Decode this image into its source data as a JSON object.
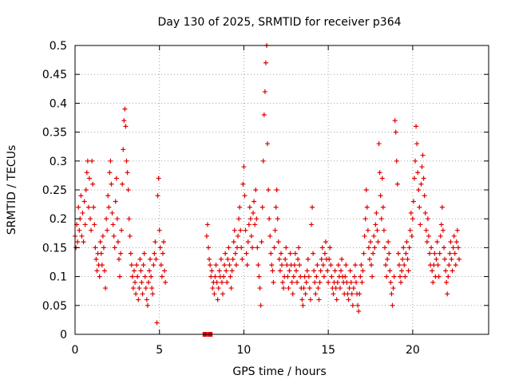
{
  "chart_data": {
    "type": "scatter",
    "title": "Day 130 of 2025, SRMTID for receiver p364",
    "xlabel": "GPS time / hours",
    "ylabel": "SRMTID / TECUs",
    "xlim": [
      0,
      24.5
    ],
    "ylim": [
      0,
      0.5
    ],
    "xticks": [
      0,
      5,
      10,
      15,
      20
    ],
    "xtick_labels": [
      "0",
      "5",
      "10",
      "15",
      "20"
    ],
    "yticks": [
      0,
      0.05,
      0.1,
      0.15,
      0.2,
      0.25,
      0.3,
      0.35,
      0.4,
      0.45,
      0.5
    ],
    "ytick_labels": [
      "0",
      "0.05",
      "0.1",
      "0.15",
      "0.2",
      "0.25",
      "0.3",
      "0.35",
      "0.4",
      "0.45",
      "0.5"
    ],
    "grid": true,
    "marker": "+",
    "color": "#e00000",
    "zero_markers": {
      "x": [
        7.7,
        8.0
      ],
      "y": 0
    },
    "points": [
      [
        0.0,
        0.17
      ],
      [
        0.05,
        0.15
      ],
      [
        0.1,
        0.19
      ],
      [
        0.15,
        0.16
      ],
      [
        0.2,
        0.22
      ],
      [
        0.25,
        0.18
      ],
      [
        0.3,
        0.2
      ],
      [
        0.35,
        0.24
      ],
      [
        0.4,
        0.17
      ],
      [
        0.45,
        0.21
      ],
      [
        0.5,
        0.16
      ],
      [
        0.55,
        0.23
      ],
      [
        0.6,
        0.19
      ],
      [
        0.65,
        0.25
      ],
      [
        0.7,
        0.28
      ],
      [
        0.75,
        0.3
      ],
      [
        0.8,
        0.22
      ],
      [
        0.85,
        0.27
      ],
      [
        0.9,
        0.2
      ],
      [
        0.95,
        0.18
      ],
      [
        1.0,
        0.3
      ],
      [
        1.05,
        0.26
      ],
      [
        1.1,
        0.22
      ],
      [
        1.15,
        0.19
      ],
      [
        1.2,
        0.15
      ],
      [
        1.25,
        0.13
      ],
      [
        1.3,
        0.11
      ],
      [
        1.35,
        0.14
      ],
      [
        1.4,
        0.12
      ],
      [
        1.45,
        0.1
      ],
      [
        1.5,
        0.16
      ],
      [
        1.55,
        0.14
      ],
      [
        1.6,
        0.12
      ],
      [
        1.65,
        0.17
      ],
      [
        1.7,
        0.15
      ],
      [
        1.75,
        0.11
      ],
      [
        1.8,
        0.08
      ],
      [
        1.85,
        0.2
      ],
      [
        1.9,
        0.18
      ],
      [
        1.95,
        0.24
      ],
      [
        2.0,
        0.22
      ],
      [
        2.05,
        0.28
      ],
      [
        2.1,
        0.3
      ],
      [
        2.15,
        0.26
      ],
      [
        2.2,
        0.21
      ],
      [
        2.25,
        0.19
      ],
      [
        2.3,
        0.17
      ],
      [
        2.35,
        0.15
      ],
      [
        2.4,
        0.23
      ],
      [
        2.45,
        0.27
      ],
      [
        2.5,
        0.2
      ],
      [
        2.55,
        0.16
      ],
      [
        2.6,
        0.13
      ],
      [
        2.65,
        0.1
      ],
      [
        2.7,
        0.14
      ],
      [
        2.75,
        0.18
      ],
      [
        2.8,
        0.26
      ],
      [
        2.85,
        0.32
      ],
      [
        2.9,
        0.37
      ],
      [
        2.95,
        0.39
      ],
      [
        3.0,
        0.36
      ],
      [
        3.05,
        0.3
      ],
      [
        3.1,
        0.28
      ],
      [
        3.15,
        0.25
      ],
      [
        3.2,
        0.2
      ],
      [
        3.25,
        0.17
      ],
      [
        3.3,
        0.14
      ],
      [
        3.35,
        0.12
      ],
      [
        3.4,
        0.1
      ],
      [
        3.45,
        0.08
      ],
      [
        3.5,
        0.11
      ],
      [
        3.55,
        0.09
      ],
      [
        3.6,
        0.07
      ],
      [
        3.65,
        0.12
      ],
      [
        3.7,
        0.1
      ],
      [
        3.75,
        0.06
      ],
      [
        3.8,
        0.08
      ],
      [
        3.85,
        0.13
      ],
      [
        3.9,
        0.11
      ],
      [
        3.95,
        0.09
      ],
      [
        4.0,
        0.07
      ],
      [
        4.05,
        0.12
      ],
      [
        4.1,
        0.14
      ],
      [
        4.15,
        0.1
      ],
      [
        4.2,
        0.08
      ],
      [
        4.25,
        0.06
      ],
      [
        4.3,
        0.05
      ],
      [
        4.35,
        0.09
      ],
      [
        4.4,
        0.11
      ],
      [
        4.45,
        0.13
      ],
      [
        4.5,
        0.1
      ],
      [
        4.55,
        0.08
      ],
      [
        4.6,
        0.07
      ],
      [
        4.65,
        0.12
      ],
      [
        4.7,
        0.14
      ],
      [
        4.75,
        0.16
      ],
      [
        4.8,
        0.13
      ],
      [
        4.85,
        0.02
      ],
      [
        4.9,
        0.24
      ],
      [
        4.95,
        0.27
      ],
      [
        5.0,
        0.18
      ],
      [
        5.05,
        0.15
      ],
      [
        5.1,
        0.12
      ],
      [
        5.15,
        0.1
      ],
      [
        5.2,
        0.14
      ],
      [
        5.25,
        0.16
      ],
      [
        5.3,
        0.11
      ],
      [
        5.35,
        0.09
      ],
      [
        7.8,
        0.17
      ],
      [
        7.85,
        0.19
      ],
      [
        7.9,
        0.15
      ],
      [
        7.95,
        0.13
      ],
      [
        8.0,
        0.12
      ],
      [
        8.05,
        0.1
      ],
      [
        8.1,
        0.11
      ],
      [
        8.15,
        0.08
      ],
      [
        8.2,
        0.09
      ],
      [
        8.25,
        0.07
      ],
      [
        8.3,
        0.1
      ],
      [
        8.35,
        0.12
      ],
      [
        8.4,
        0.09
      ],
      [
        8.45,
        0.06
      ],
      [
        8.5,
        0.08
      ],
      [
        8.55,
        0.11
      ],
      [
        8.6,
        0.1
      ],
      [
        8.65,
        0.13
      ],
      [
        8.7,
        0.09
      ],
      [
        8.75,
        0.07
      ],
      [
        8.8,
        0.1
      ],
      [
        8.85,
        0.12
      ],
      [
        8.9,
        0.14
      ],
      [
        8.95,
        0.11
      ],
      [
        9.0,
        0.09
      ],
      [
        9.05,
        0.13
      ],
      [
        9.1,
        0.15
      ],
      [
        9.15,
        0.12
      ],
      [
        9.2,
        0.1
      ],
      [
        9.25,
        0.08
      ],
      [
        9.3,
        0.11
      ],
      [
        9.35,
        0.13
      ],
      [
        9.4,
        0.16
      ],
      [
        9.45,
        0.18
      ],
      [
        9.5,
        0.14
      ],
      [
        9.55,
        0.12
      ],
      [
        9.6,
        0.15
      ],
      [
        9.65,
        0.17
      ],
      [
        9.7,
        0.2
      ],
      [
        9.75,
        0.22
      ],
      [
        9.8,
        0.18
      ],
      [
        9.85,
        0.15
      ],
      [
        9.9,
        0.13
      ],
      [
        9.95,
        0.26
      ],
      [
        10.0,
        0.29
      ],
      [
        10.05,
        0.24
      ],
      [
        10.1,
        0.18
      ],
      [
        10.15,
        0.14
      ],
      [
        10.2,
        0.12
      ],
      [
        10.25,
        0.16
      ],
      [
        10.3,
        0.19
      ],
      [
        10.35,
        0.22
      ],
      [
        10.4,
        0.2
      ],
      [
        10.45,
        0.17
      ],
      [
        10.5,
        0.15
      ],
      [
        10.55,
        0.21
      ],
      [
        10.6,
        0.23
      ],
      [
        10.65,
        0.19
      ],
      [
        10.7,
        0.25
      ],
      [
        10.75,
        0.2
      ],
      [
        10.8,
        0.15
      ],
      [
        10.85,
        0.12
      ],
      [
        10.9,
        0.1
      ],
      [
        10.95,
        0.08
      ],
      [
        11.0,
        0.05
      ],
      [
        11.05,
        0.16
      ],
      [
        11.1,
        0.22
      ],
      [
        11.15,
        0.3
      ],
      [
        11.2,
        0.38
      ],
      [
        11.25,
        0.42
      ],
      [
        11.3,
        0.47
      ],
      [
        11.35,
        0.5
      ],
      [
        11.4,
        0.33
      ],
      [
        11.45,
        0.25
      ],
      [
        11.5,
        0.2
      ],
      [
        11.55,
        0.17
      ],
      [
        11.6,
        0.14
      ],
      [
        11.65,
        0.12
      ],
      [
        11.7,
        0.11
      ],
      [
        11.75,
        0.09
      ],
      [
        11.8,
        0.15
      ],
      [
        11.85,
        0.18
      ],
      [
        11.9,
        0.22
      ],
      [
        11.95,
        0.25
      ],
      [
        12.0,
        0.2
      ],
      [
        12.05,
        0.16
      ],
      [
        12.1,
        0.13
      ],
      [
        12.15,
        0.11
      ],
      [
        12.2,
        0.14
      ],
      [
        12.25,
        0.12
      ],
      [
        12.3,
        0.09
      ],
      [
        12.35,
        0.08
      ],
      [
        12.4,
        0.1
      ],
      [
        12.45,
        0.13
      ],
      [
        12.5,
        0.15
      ],
      [
        12.55,
        0.12
      ],
      [
        12.6,
        0.1
      ],
      [
        12.65,
        0.08
      ],
      [
        12.7,
        0.11
      ],
      [
        12.75,
        0.14
      ],
      [
        12.8,
        0.12
      ],
      [
        12.85,
        0.09
      ],
      [
        12.9,
        0.07
      ],
      [
        12.95,
        0.1
      ],
      [
        13.0,
        0.12
      ],
      [
        13.05,
        0.14
      ],
      [
        13.1,
        0.11
      ],
      [
        13.15,
        0.09
      ],
      [
        13.2,
        0.13
      ],
      [
        13.25,
        0.15
      ],
      [
        13.3,
        0.12
      ],
      [
        13.35,
        0.1
      ],
      [
        13.4,
        0.08
      ],
      [
        13.45,
        0.06
      ],
      [
        13.5,
        0.05
      ],
      [
        13.55,
        0.08
      ],
      [
        13.6,
        0.1
      ],
      [
        13.65,
        0.07
      ],
      [
        13.7,
        0.09
      ],
      [
        13.75,
        0.11
      ],
      [
        13.8,
        0.13
      ],
      [
        13.85,
        0.1
      ],
      [
        13.9,
        0.08
      ],
      [
        13.95,
        0.06
      ],
      [
        14.0,
        0.19
      ],
      [
        14.05,
        0.22
      ],
      [
        14.1,
        0.14
      ],
      [
        14.15,
        0.11
      ],
      [
        14.2,
        0.09
      ],
      [
        14.25,
        0.07
      ],
      [
        14.3,
        0.1
      ],
      [
        14.35,
        0.12
      ],
      [
        14.4,
        0.08
      ],
      [
        14.45,
        0.06
      ],
      [
        14.5,
        0.09
      ],
      [
        14.55,
        0.11
      ],
      [
        14.6,
        0.13
      ],
      [
        14.65,
        0.15
      ],
      [
        14.7,
        0.12
      ],
      [
        14.75,
        0.1
      ],
      [
        14.8,
        0.14
      ],
      [
        14.85,
        0.16
      ],
      [
        14.9,
        0.13
      ],
      [
        14.95,
        0.11
      ],
      [
        15.0,
        0.09
      ],
      [
        15.05,
        0.13
      ],
      [
        15.1,
        0.15
      ],
      [
        15.15,
        0.12
      ],
      [
        15.2,
        0.1
      ],
      [
        15.25,
        0.08
      ],
      [
        15.3,
        0.07
      ],
      [
        15.35,
        0.09
      ],
      [
        15.4,
        0.11
      ],
      [
        15.45,
        0.08
      ],
      [
        15.5,
        0.06
      ],
      [
        15.55,
        0.09
      ],
      [
        15.6,
        0.12
      ],
      [
        15.65,
        0.1
      ],
      [
        15.7,
        0.08
      ],
      [
        15.75,
        0.11
      ],
      [
        15.8,
        0.13
      ],
      [
        15.85,
        0.1
      ],
      [
        15.9,
        0.09
      ],
      [
        15.95,
        0.07
      ],
      [
        16.0,
        0.1
      ],
      [
        16.05,
        0.12
      ],
      [
        16.1,
        0.09
      ],
      [
        16.15,
        0.07
      ],
      [
        16.2,
        0.06
      ],
      [
        16.25,
        0.08
      ],
      [
        16.3,
        0.11
      ],
      [
        16.35,
        0.09
      ],
      [
        16.4,
        0.07
      ],
      [
        16.45,
        0.05
      ],
      [
        16.5,
        0.08
      ],
      [
        16.55,
        0.1
      ],
      [
        16.6,
        0.12
      ],
      [
        16.65,
        0.09
      ],
      [
        16.7,
        0.07
      ],
      [
        16.75,
        0.05
      ],
      [
        16.8,
        0.04
      ],
      [
        16.85,
        0.07
      ],
      [
        16.9,
        0.1
      ],
      [
        16.95,
        0.12
      ],
      [
        17.0,
        0.09
      ],
      [
        17.05,
        0.11
      ],
      [
        17.1,
        0.14
      ],
      [
        17.15,
        0.17
      ],
      [
        17.2,
        0.2
      ],
      [
        17.25,
        0.25
      ],
      [
        17.3,
        0.22
      ],
      [
        17.35,
        0.18
      ],
      [
        17.4,
        0.15
      ],
      [
        17.45,
        0.13
      ],
      [
        17.5,
        0.16
      ],
      [
        17.55,
        0.12
      ],
      [
        17.6,
        0.1
      ],
      [
        17.65,
        0.14
      ],
      [
        17.7,
        0.17
      ],
      [
        17.75,
        0.15
      ],
      [
        17.8,
        0.19
      ],
      [
        17.85,
        0.21
      ],
      [
        17.9,
        0.18
      ],
      [
        17.95,
        0.16
      ],
      [
        18.0,
        0.33
      ],
      [
        18.05,
        0.28
      ],
      [
        18.1,
        0.24
      ],
      [
        18.15,
        0.2
      ],
      [
        18.2,
        0.27
      ],
      [
        18.25,
        0.22
      ],
      [
        18.3,
        0.18
      ],
      [
        18.35,
        0.15
      ],
      [
        18.4,
        0.12
      ],
      [
        18.45,
        0.1
      ],
      [
        18.5,
        0.13
      ],
      [
        18.55,
        0.16
      ],
      [
        18.6,
        0.14
      ],
      [
        18.65,
        0.11
      ],
      [
        18.7,
        0.09
      ],
      [
        18.75,
        0.07
      ],
      [
        18.8,
        0.05
      ],
      [
        18.85,
        0.08
      ],
      [
        18.9,
        0.1
      ],
      [
        18.95,
        0.37
      ],
      [
        19.0,
        0.35
      ],
      [
        19.05,
        0.3
      ],
      [
        19.1,
        0.26
      ],
      [
        19.15,
        0.14
      ],
      [
        19.2,
        0.12
      ],
      [
        19.25,
        0.1
      ],
      [
        19.3,
        0.09
      ],
      [
        19.35,
        0.11
      ],
      [
        19.4,
        0.13
      ],
      [
        19.45,
        0.15
      ],
      [
        19.5,
        0.12
      ],
      [
        19.55,
        0.1
      ],
      [
        19.6,
        0.14
      ],
      [
        19.65,
        0.16
      ],
      [
        19.7,
        0.13
      ],
      [
        19.75,
        0.11
      ],
      [
        19.8,
        0.15
      ],
      [
        19.85,
        0.18
      ],
      [
        19.9,
        0.21
      ],
      [
        19.95,
        0.17
      ],
      [
        20.0,
        0.2
      ],
      [
        20.05,
        0.23
      ],
      [
        20.1,
        0.27
      ],
      [
        20.15,
        0.3
      ],
      [
        20.2,
        0.36
      ],
      [
        20.25,
        0.33
      ],
      [
        20.3,
        0.28
      ],
      [
        20.35,
        0.25
      ],
      [
        20.4,
        0.22
      ],
      [
        20.45,
        0.19
      ],
      [
        20.5,
        0.26
      ],
      [
        20.55,
        0.29
      ],
      [
        20.6,
        0.31
      ],
      [
        20.65,
        0.27
      ],
      [
        20.7,
        0.24
      ],
      [
        20.75,
        0.21
      ],
      [
        20.8,
        0.18
      ],
      [
        20.85,
        0.16
      ],
      [
        20.9,
        0.2
      ],
      [
        20.95,
        0.17
      ],
      [
        21.0,
        0.14
      ],
      [
        21.05,
        0.12
      ],
      [
        21.1,
        0.15
      ],
      [
        21.15,
        0.11
      ],
      [
        21.2,
        0.09
      ],
      [
        21.25,
        0.12
      ],
      [
        21.3,
        0.14
      ],
      [
        21.35,
        0.1
      ],
      [
        21.4,
        0.13
      ],
      [
        21.45,
        0.16
      ],
      [
        21.5,
        0.12
      ],
      [
        21.55,
        0.1
      ],
      [
        21.6,
        0.14
      ],
      [
        21.65,
        0.17
      ],
      [
        21.7,
        0.19
      ],
      [
        21.75,
        0.22
      ],
      [
        21.8,
        0.18
      ],
      [
        21.85,
        0.15
      ],
      [
        21.9,
        0.13
      ],
      [
        21.95,
        0.11
      ],
      [
        22.0,
        0.09
      ],
      [
        22.05,
        0.07
      ],
      [
        22.1,
        0.1
      ],
      [
        22.15,
        0.12
      ],
      [
        22.2,
        0.14
      ],
      [
        22.25,
        0.16
      ],
      [
        22.3,
        0.13
      ],
      [
        22.35,
        0.11
      ],
      [
        22.4,
        0.15
      ],
      [
        22.45,
        0.17
      ],
      [
        22.5,
        0.14
      ],
      [
        22.55,
        0.12
      ],
      [
        22.6,
        0.16
      ],
      [
        22.65,
        0.18
      ],
      [
        22.7,
        0.15
      ],
      [
        22.75,
        0.13
      ]
    ]
  }
}
